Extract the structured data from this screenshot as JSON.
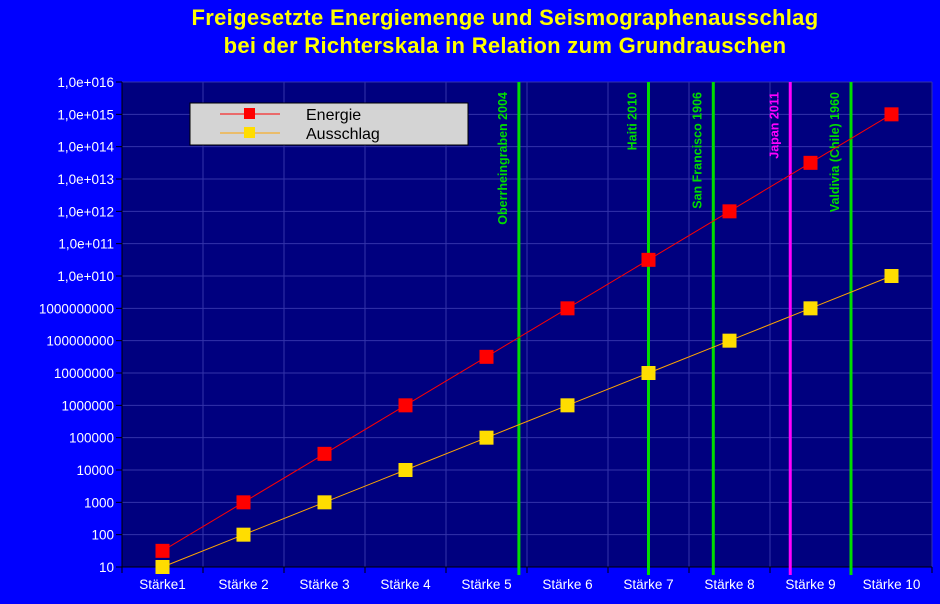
{
  "chart_data": {
    "type": "line",
    "title_lines": [
      "Freigesetzte Energiemenge und Seismographenausschlag",
      "bei der Richterskala in Relation zum Grundrauschen"
    ],
    "categories": [
      "Stärke1",
      "Stärke 2",
      "Stärke 3",
      "Stärke 4",
      "Stärke 5",
      "Stärke 6",
      "Stärke 7",
      "Stärke 8",
      "Stärke 9",
      "Stärke 10"
    ],
    "series": [
      {
        "name": "Energie",
        "color": "#FF0000",
        "marker": "square",
        "values": [
          31.6,
          1000,
          31623,
          1000000,
          31622777,
          1000000000,
          31622776602,
          1000000000000,
          31622776601684,
          1000000000000000
        ]
      },
      {
        "name": "Ausschlag",
        "color": "#FFDD00",
        "marker": "square",
        "values": [
          10,
          100,
          1000,
          10000,
          100000,
          1000000,
          10000000,
          100000000,
          1000000000,
          10000000000
        ]
      }
    ],
    "y_scale": "log10",
    "ylim": [
      10,
      10000000000000000
    ],
    "y_tick_labels": [
      "10",
      "100",
      "1000",
      "10000",
      "100000",
      "1000000",
      "10000000",
      "100000000",
      "1000000000",
      "1,0e+010",
      "1,0e+011",
      "1,0e+012",
      "1,0e+013",
      "1,0e+014",
      "1,0e+015",
      "1,0e+016"
    ],
    "grid": true,
    "legend_position": "top-left",
    "events": [
      {
        "label": "Oberrheingraben 2004",
        "magnitude": 5.4,
        "color": "#00DD00"
      },
      {
        "label": "Haiti 2010",
        "magnitude": 7.0,
        "color": "#00DD00"
      },
      {
        "label": "San Francisco 1906",
        "magnitude": 7.8,
        "color": "#00DD00"
      },
      {
        "label": "Japan 2011",
        "magnitude": 8.75,
        "color": "#FF00FF"
      },
      {
        "label": "Valdivia (Chile) 1960",
        "magnitude": 9.5,
        "color": "#00DD00"
      }
    ]
  },
  "colors": {
    "page_background": "#0000FF",
    "plot_background": "#00007F",
    "title_color": "#FFFF00",
    "grid_color": "#3333AA",
    "axis_text_color": "#FFFFFF",
    "legend_background": "#D4D4D4"
  }
}
